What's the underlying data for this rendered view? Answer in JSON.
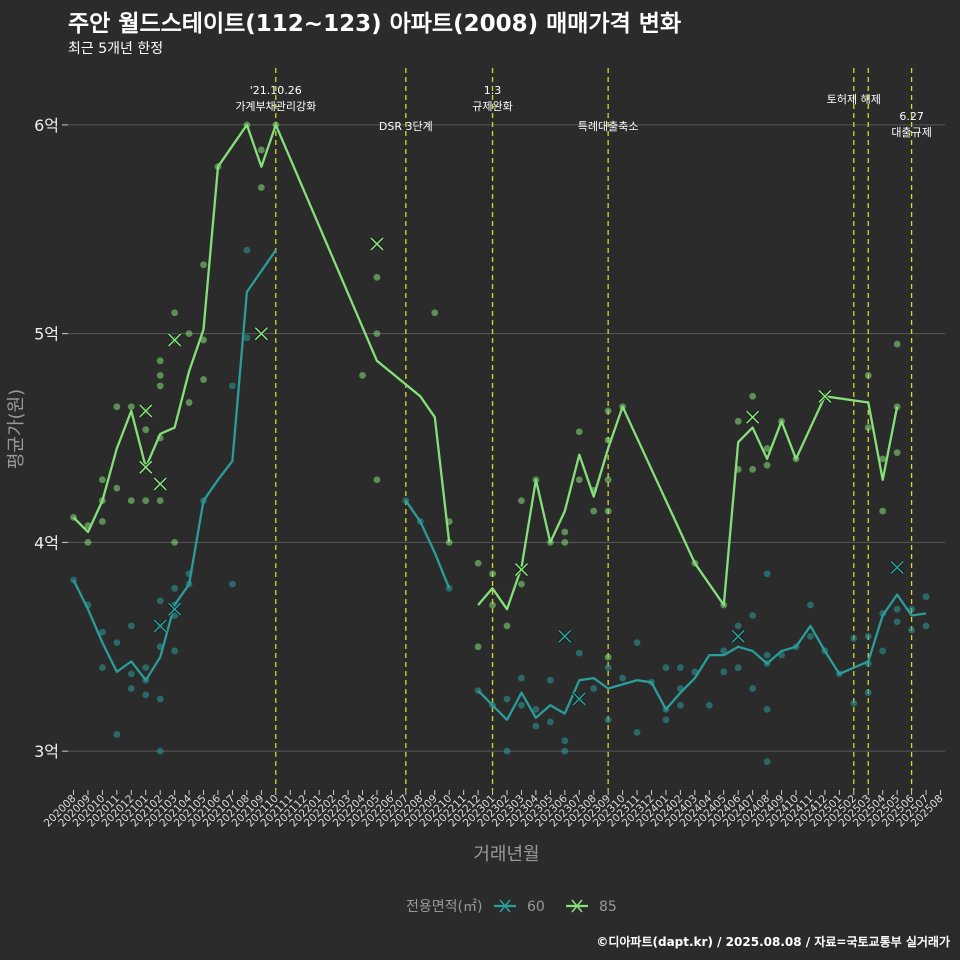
{
  "title": "주안 월드스테이트(112~123) 아파트(2008) 매매가격 변화",
  "subtitle": "최근 5개년 한정",
  "caption": "©디아파트(dapt.kr) / 2025.08.08 / 자료=국토교통부 실거래가",
  "colors": {
    "background": "#2b2b2b",
    "grid": "#5a5a5a",
    "s60": "#2a9d9a",
    "s85": "#86e07a",
    "event": "#d8d829"
  },
  "chart_data": {
    "type": "line",
    "xlabel": "거래년월",
    "ylabel": "평균가(원)",
    "ylim": [
      2.8,
      6.3
    ],
    "yticks": [
      {
        "v": 3,
        "label": "3억"
      },
      {
        "v": 4,
        "label": "4억"
      },
      {
        "v": 5,
        "label": "5억"
      },
      {
        "v": 6,
        "label": "6억"
      }
    ],
    "legend_title": "전용면적(㎡)",
    "legend_position": "bottom",
    "x_categories": [
      "202008",
      "202009",
      "202010",
      "202011",
      "202012",
      "202101",
      "202102",
      "202103",
      "202104",
      "202105",
      "202106",
      "202107",
      "202108",
      "202109",
      "202110",
      "202111",
      "202112",
      "202201",
      "202202",
      "202203",
      "202204",
      "202205",
      "202206",
      "202207",
      "202208",
      "202209",
      "202210",
      "202211",
      "202212",
      "202301",
      "202302",
      "202303",
      "202304",
      "202305",
      "202306",
      "202307",
      "202308",
      "202309",
      "202310",
      "202311",
      "202312",
      "202401",
      "202402",
      "202403",
      "202404",
      "202405",
      "202406",
      "202407",
      "202408",
      "202409",
      "202410",
      "202411",
      "202412",
      "202501",
      "202502",
      "202503",
      "202504",
      "202505",
      "202506",
      "202507",
      "202508"
    ],
    "events": [
      {
        "x": 14.0,
        "lines": [
          "'21.10.26",
          "가계부채관리강화"
        ],
        "row": 0
      },
      {
        "x": 23.0,
        "lines": [
          "DSR 3단계"
        ],
        "row": 1
      },
      {
        "x": 29.0,
        "lines": [
          "1.3",
          "규제완화"
        ],
        "row": 0
      },
      {
        "x": 37.0,
        "lines": [
          "특례대출축소"
        ],
        "row": 1
      },
      {
        "x": 54.0,
        "lines": [
          "토허제 해제"
        ],
        "row": 0
      },
      {
        "x": 55.0,
        "lines": [],
        "row": 0
      },
      {
        "x": 58.0,
        "lines": [
          "6.27",
          "대출규제"
        ],
        "row": 2
      }
    ],
    "series": [
      {
        "name": "60",
        "segments": [
          [
            [
              0,
              3.82
            ],
            [
              1,
              3.68
            ],
            [
              2,
              3.52
            ],
            [
              3,
              3.38
            ],
            [
              4,
              3.43
            ],
            [
              5,
              3.34
            ],
            [
              6,
              3.45
            ],
            [
              7,
              3.7
            ],
            [
              8,
              3.8
            ],
            [
              9,
              4.2
            ],
            [
              10,
              4.3
            ],
            [
              11,
              4.39
            ],
            [
              12,
              5.2
            ],
            [
              13,
              5.3
            ],
            [
              14,
              5.4
            ]
          ],
          [
            [
              23,
              4.2
            ],
            [
              24,
              4.1
            ],
            [
              25,
              3.95
            ],
            [
              26,
              3.78
            ]
          ],
          [
            [
              28,
              3.29
            ],
            [
              29,
              3.22
            ],
            [
              30,
              3.15
            ],
            [
              31,
              3.28
            ],
            [
              32,
              3.16
            ],
            [
              33,
              3.22
            ],
            [
              34,
              3.18
            ],
            [
              35,
              3.34
            ],
            [
              36,
              3.35
            ],
            [
              37,
              3.3
            ],
            [
              38,
              3.32
            ],
            [
              39,
              3.34
            ],
            [
              40,
              3.33
            ],
            [
              41,
              3.2
            ],
            [
              42,
              3.28
            ],
            [
              43,
              3.35
            ],
            [
              44,
              3.46
            ],
            [
              45,
              3.46
            ],
            [
              46,
              3.5
            ],
            [
              47,
              3.48
            ],
            [
              48,
              3.42
            ],
            [
              49,
              3.48
            ],
            [
              50,
              3.5
            ],
            [
              51,
              3.6
            ],
            [
              52,
              3.48
            ],
            [
              53,
              3.37
            ],
            [
              54,
              3.4
            ],
            [
              55,
              3.43
            ],
            [
              56,
              3.65
            ],
            [
              57,
              3.75
            ],
            [
              58,
              3.65
            ],
            [
              59,
              3.66
            ]
          ]
        ],
        "points": [
          [
            0,
            3.82
          ],
          [
            1,
            3.7
          ],
          [
            2,
            3.57
          ],
          [
            2,
            3.4
          ],
          [
            3,
            3.52
          ],
          [
            3,
            3.08
          ],
          [
            4,
            3.37
          ],
          [
            4,
            3.3
          ],
          [
            4,
            3.6
          ],
          [
            5,
            3.34
          ],
          [
            5,
            3.27
          ],
          [
            5,
            3.4
          ],
          [
            6,
            3.0
          ],
          [
            6,
            3.25
          ],
          [
            6,
            3.5
          ],
          [
            6,
            3.72
          ],
          [
            6,
            3.6
          ],
          [
            7,
            3.7
          ],
          [
            7,
            3.65
          ],
          [
            7,
            3.48
          ],
          [
            7,
            3.78
          ],
          [
            8,
            3.8
          ],
          [
            8,
            3.85
          ],
          [
            9,
            4.2
          ],
          [
            11,
            4.75
          ],
          [
            11,
            3.8
          ],
          [
            12,
            5.4
          ],
          [
            12,
            4.98
          ],
          [
            23,
            4.2
          ],
          [
            24,
            4.1
          ],
          [
            26,
            3.78
          ],
          [
            28,
            3.29
          ],
          [
            29,
            3.22
          ],
          [
            30,
            3.0
          ],
          [
            30,
            3.25
          ],
          [
            31,
            3.35
          ],
          [
            31,
            3.22
          ],
          [
            32,
            3.12
          ],
          [
            32,
            3.2
          ],
          [
            33,
            3.14
          ],
          [
            33,
            3.34
          ],
          [
            34,
            3.0
          ],
          [
            34,
            3.05
          ],
          [
            35,
            3.25
          ],
          [
            35,
            3.47
          ],
          [
            36,
            3.3
          ],
          [
            37,
            3.15
          ],
          [
            37,
            3.4
          ],
          [
            38,
            3.35
          ],
          [
            39,
            3.09
          ],
          [
            39,
            3.52
          ],
          [
            40,
            3.33
          ],
          [
            41,
            3.15
          ],
          [
            41,
            3.2
          ],
          [
            41,
            3.4
          ],
          [
            42,
            3.22
          ],
          [
            42,
            3.3
          ],
          [
            42,
            3.4
          ],
          [
            43,
            3.38
          ],
          [
            44,
            3.22
          ],
          [
            45,
            3.38
          ],
          [
            45,
            3.48
          ],
          [
            46,
            3.4
          ],
          [
            46,
            3.6
          ],
          [
            47,
            3.3
          ],
          [
            47,
            3.65
          ],
          [
            48,
            2.95
          ],
          [
            48,
            3.2
          ],
          [
            48,
            3.46
          ],
          [
            48,
            3.85
          ],
          [
            48,
            3.42
          ],
          [
            49,
            3.46
          ],
          [
            50,
            3.5
          ],
          [
            51,
            3.7
          ],
          [
            51,
            3.55
          ],
          [
            52,
            3.48
          ],
          [
            53,
            3.37
          ],
          [
            54,
            3.23
          ],
          [
            54,
            3.54
          ],
          [
            55,
            3.28
          ],
          [
            55,
            3.42
          ],
          [
            55,
            3.55
          ],
          [
            56,
            3.48
          ],
          [
            56,
            3.66
          ],
          [
            57,
            3.62
          ],
          [
            57,
            3.68
          ],
          [
            58,
            3.68
          ],
          [
            58,
            3.58
          ],
          [
            59,
            3.74
          ],
          [
            59,
            3.6
          ]
        ],
        "crosses": [
          [
            6,
            3.6
          ],
          [
            7,
            3.68
          ],
          [
            34,
            3.55
          ],
          [
            35,
            3.25
          ],
          [
            46,
            3.55
          ],
          [
            57,
            3.88
          ]
        ]
      },
      {
        "name": "85",
        "segments": [
          [
            [
              0,
              4.12
            ],
            [
              1,
              4.05
            ],
            [
              2,
              4.2
            ],
            [
              3,
              4.45
            ],
            [
              4,
              4.63
            ],
            [
              5,
              4.36
            ],
            [
              6,
              4.52
            ],
            [
              7,
              4.55
            ],
            [
              8,
              4.82
            ],
            [
              9,
              5.02
            ],
            [
              10,
              5.8
            ],
            [
              11,
              5.9
            ],
            [
              12,
              6.0
            ],
            [
              13,
              5.8
            ],
            [
              14,
              6.0
            ],
            [
              21,
              4.87
            ],
            [
              24,
              4.7
            ],
            [
              25,
              4.6
            ],
            [
              26,
              4.0
            ]
          ],
          [
            [
              28,
              3.7
            ],
            [
              29,
              3.78
            ],
            [
              30,
              3.68
            ],
            [
              31,
              3.88
            ],
            [
              32,
              4.3
            ],
            [
              33,
              4.0
            ],
            [
              34,
              4.15
            ],
            [
              35,
              4.42
            ],
            [
              36,
              4.22
            ],
            [
              37,
              4.45
            ],
            [
              38,
              4.65
            ],
            [
              43,
              3.9
            ],
            [
              45,
              3.7
            ],
            [
              46,
              4.48
            ],
            [
              47,
              4.55
            ],
            [
              48,
              4.4
            ],
            [
              49,
              4.58
            ],
            [
              50,
              4.4
            ],
            [
              52,
              4.7
            ],
            [
              55,
              4.67
            ],
            [
              56,
              4.3
            ],
            [
              57,
              4.65
            ]
          ]
        ],
        "points": [
          [
            0,
            4.12
          ],
          [
            1,
            4.08
          ],
          [
            1,
            4.0
          ],
          [
            2,
            4.3
          ],
          [
            2,
            4.1
          ],
          [
            2,
            4.2
          ],
          [
            3,
            4.65
          ],
          [
            3,
            4.26
          ],
          [
            4,
            4.65
          ],
          [
            4,
            4.2
          ],
          [
            5,
            4.63
          ],
          [
            5,
            4.2
          ],
          [
            5,
            4.54
          ],
          [
            6,
            4.87
          ],
          [
            6,
            4.8
          ],
          [
            6,
            4.75
          ],
          [
            6,
            4.5
          ],
          [
            6,
            4.2
          ],
          [
            7,
            5.1
          ],
          [
            7,
            4.97
          ],
          [
            7,
            4.0
          ],
          [
            8,
            5.0
          ],
          [
            8,
            4.67
          ],
          [
            9,
            5.33
          ],
          [
            9,
            4.97
          ],
          [
            9,
            4.78
          ],
          [
            10,
            5.8
          ],
          [
            12,
            6.0
          ],
          [
            13,
            5.88
          ],
          [
            13,
            5.7
          ],
          [
            14,
            6.0
          ],
          [
            20,
            4.8
          ],
          [
            21,
            5.27
          ],
          [
            21,
            5.0
          ],
          [
            21,
            4.3
          ],
          [
            25,
            5.1
          ],
          [
            26,
            4.1
          ],
          [
            26,
            4.0
          ],
          [
            28,
            3.9
          ],
          [
            28,
            3.5
          ],
          [
            29,
            3.85
          ],
          [
            29,
            3.7
          ],
          [
            30,
            3.6
          ],
          [
            31,
            3.8
          ],
          [
            31,
            4.2
          ],
          [
            32,
            4.3
          ],
          [
            33,
            4.0
          ],
          [
            34,
            4.0
          ],
          [
            34,
            4.05
          ],
          [
            35,
            4.53
          ],
          [
            35,
            4.3
          ],
          [
            36,
            4.15
          ],
          [
            36,
            4.25
          ],
          [
            37,
            4.63
          ],
          [
            37,
            4.49
          ],
          [
            37,
            4.3
          ],
          [
            37,
            4.15
          ],
          [
            37,
            3.45
          ],
          [
            38,
            4.65
          ],
          [
            43,
            3.9
          ],
          [
            45,
            3.7
          ],
          [
            46,
            4.58
          ],
          [
            46,
            4.35
          ],
          [
            47,
            4.7
          ],
          [
            47,
            4.35
          ],
          [
            48,
            4.45
          ],
          [
            48,
            4.37
          ],
          [
            49,
            4.58
          ],
          [
            50,
            4.4
          ],
          [
            52,
            4.7
          ],
          [
            55,
            4.8
          ],
          [
            55,
            4.55
          ],
          [
            56,
            4.4
          ],
          [
            56,
            4.15
          ],
          [
            57,
            4.95
          ],
          [
            57,
            4.65
          ],
          [
            57,
            4.43
          ]
        ],
        "crosses": [
          [
            5,
            4.63
          ],
          [
            5,
            4.36
          ],
          [
            6,
            4.28
          ],
          [
            7,
            4.97
          ],
          [
            13,
            5.0
          ],
          [
            21,
            5.43
          ],
          [
            31,
            3.87
          ],
          [
            47,
            4.6
          ],
          [
            52,
            4.7
          ]
        ]
      }
    ]
  }
}
